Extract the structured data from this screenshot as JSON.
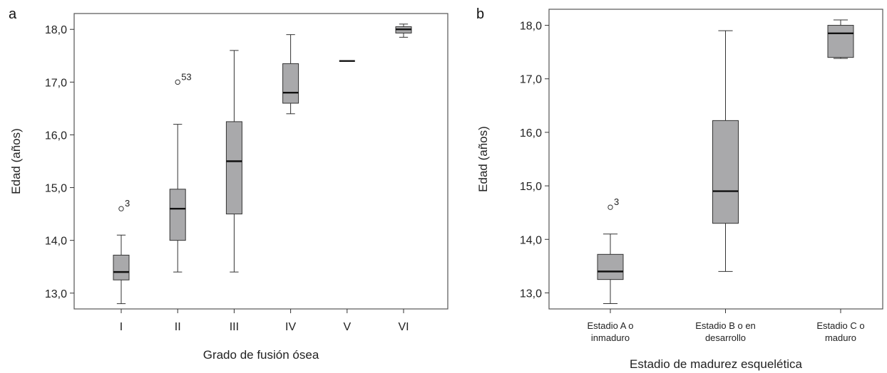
{
  "chart_data": [
    {
      "type": "boxplot",
      "panel_label": "a",
      "xlabel": "Grado de fusión ósea",
      "ylabel": "Edad (años)",
      "ylim": [
        12.7,
        18.3
      ],
      "yticks": [
        "13,0",
        "14,0",
        "15,0",
        "16,0",
        "17,0",
        "18,0"
      ],
      "ytick_values": [
        13,
        14,
        15,
        16,
        17,
        18
      ],
      "grid": false,
      "categories": [
        "I",
        "II",
        "III",
        "IV",
        "V",
        "VI"
      ],
      "boxes": [
        {
          "min": 12.8,
          "q1": 13.25,
          "median": 13.4,
          "q3": 13.72,
          "max": 14.1,
          "outliers": [
            {
              "value": 14.6,
              "label": "3"
            }
          ]
        },
        {
          "min": 13.4,
          "q1": 14.0,
          "median": 14.6,
          "q3": 14.97,
          "max": 16.2,
          "outliers": [
            {
              "value": 17.0,
              "label": "53"
            }
          ]
        },
        {
          "min": 13.4,
          "q1": 14.5,
          "median": 15.5,
          "q3": 16.25,
          "max": 17.6,
          "outliers": []
        },
        {
          "min": 16.4,
          "q1": 16.6,
          "median": 16.8,
          "q3": 17.35,
          "max": 17.9,
          "outliers": []
        },
        {
          "min": 17.4,
          "q1": 17.4,
          "median": 17.4,
          "q3": 17.4,
          "max": 17.4,
          "outliers": []
        },
        {
          "min": 17.85,
          "q1": 17.93,
          "median": 18.0,
          "q3": 18.05,
          "max": 18.1,
          "outliers": []
        }
      ]
    },
    {
      "type": "boxplot",
      "panel_label": "b",
      "xlabel": "Estadio de madurez esquelética",
      "ylabel": "Edad (años)",
      "ylim": [
        12.7,
        18.3
      ],
      "yticks": [
        "13,0",
        "14,0",
        "15,0",
        "16,0",
        "17,0",
        "18,0"
      ],
      "ytick_values": [
        13,
        14,
        15,
        16,
        17,
        18
      ],
      "grid": false,
      "categories": [
        [
          "Estadio A o",
          "inmaduro"
        ],
        [
          "Estadio B o en",
          "desarrollo"
        ],
        [
          "Estadio C o",
          "maduro"
        ]
      ],
      "boxes": [
        {
          "min": 12.8,
          "q1": 13.25,
          "median": 13.4,
          "q3": 13.72,
          "max": 14.1,
          "outliers": [
            {
              "value": 14.6,
              "label": "3"
            }
          ]
        },
        {
          "min": 13.4,
          "q1": 14.3,
          "median": 14.9,
          "q3": 16.22,
          "max": 17.9,
          "outliers": []
        },
        {
          "min": 17.38,
          "q1": 17.4,
          "median": 17.85,
          "q3": 18.0,
          "max": 18.1,
          "outliers": []
        }
      ]
    }
  ]
}
